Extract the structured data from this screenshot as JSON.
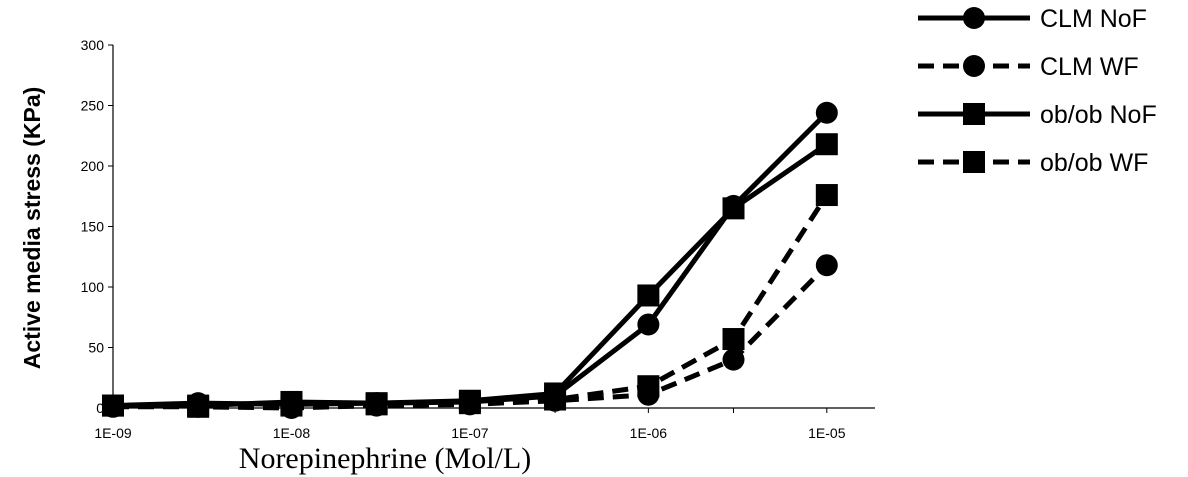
{
  "chart_data": {
    "type": "line",
    "xlabel": "Norepinephrine (Mol/L)",
    "ylabel": "Active media stress (KPa)",
    "x_scale": "log",
    "x": [
      1e-09,
      3e-09,
      1e-08,
      3e-08,
      1e-07,
      3e-07,
      1e-06,
      3e-06,
      1e-05
    ],
    "x_tick_labels": [
      "1E-09",
      "1E-08",
      "1E-07",
      "1E-06",
      "1E-05"
    ],
    "y_ticks": [
      "0",
      "50",
      "100",
      "150",
      "200",
      "250",
      "300"
    ],
    "ylim": [
      0,
      300
    ],
    "grid": false,
    "legend_position": "right",
    "series": [
      {
        "name": "CLM NoF",
        "line": "solid",
        "marker": "circle",
        "values": [
          2,
          4,
          3,
          4,
          5,
          10,
          69,
          167,
          244
        ]
      },
      {
        "name": "CLM WF",
        "line": "dashed",
        "marker": "circle",
        "values": [
          1,
          1,
          0,
          2,
          3,
          6,
          11,
          40,
          118
        ]
      },
      {
        "name": "ob/ob NoF",
        "line": "solid",
        "marker": "square",
        "values": [
          2,
          2,
          5,
          4,
          6,
          12,
          93,
          165,
          218
        ]
      },
      {
        "name": "ob/ob WF",
        "line": "dashed",
        "marker": "square",
        "values": [
          2,
          1,
          2,
          3,
          4,
          7,
          18,
          57,
          176
        ]
      }
    ],
    "colors": {
      "lines": "#000000",
      "markers": "#000000"
    }
  }
}
